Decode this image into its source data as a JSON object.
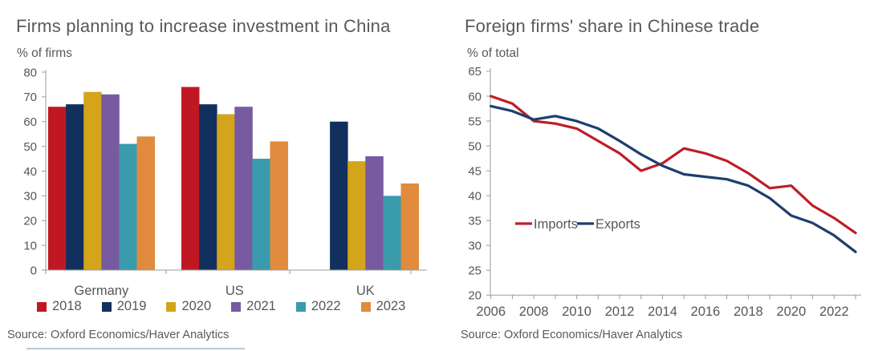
{
  "chart_data": [
    {
      "type": "bar",
      "title": "Firms planning to increase investment in China",
      "unit_label": "% of firms",
      "categories": [
        "Germany",
        "US",
        "UK"
      ],
      "series": [
        {
          "name": "2018",
          "color": "#c01823",
          "values": [
            66,
            74,
            null
          ]
        },
        {
          "name": "2019",
          "color": "#12305e",
          "values": [
            67,
            67,
            60
          ]
        },
        {
          "name": "2020",
          "color": "#d4a41a",
          "values": [
            72,
            63,
            44
          ]
        },
        {
          "name": "2021",
          "color": "#785aa0",
          "values": [
            71,
            66,
            46
          ]
        },
        {
          "name": "2022",
          "color": "#3a9bac",
          "values": [
            51,
            45,
            30
          ]
        },
        {
          "name": "2023",
          "color": "#e08b3d",
          "values": [
            54,
            52,
            35
          ]
        }
      ],
      "ylim": [
        0,
        80
      ],
      "ytick_step": 10,
      "grid": false,
      "legend_position": "bottom",
      "source": "Source: Oxford Economics/Haver Analytics"
    },
    {
      "type": "line",
      "title": "Foreign firms' share in Chinese trade",
      "unit_label": "% of total",
      "x": [
        2006,
        2007,
        2008,
        2009,
        2010,
        2011,
        2012,
        2013,
        2014,
        2015,
        2016,
        2017,
        2018,
        2019,
        2020,
        2021,
        2022,
        2023
      ],
      "series": [
        {
          "name": "Imports",
          "color": "#be1e26",
          "values": [
            60,
            58.5,
            55,
            54.5,
            53.5,
            51,
            48.5,
            45,
            46.5,
            49.5,
            48.5,
            47,
            44.5,
            41.5,
            42,
            38,
            35.5,
            32.5
          ]
        },
        {
          "name": "Exports",
          "color": "#1b3f6e",
          "values": [
            58,
            57,
            55.3,
            56,
            55,
            53.5,
            51,
            48.3,
            46,
            44.3,
            43.8,
            43.3,
            42,
            39.5,
            36,
            34.5,
            32,
            28.7
          ]
        }
      ],
      "ylim": [
        20,
        65
      ],
      "ytick_step": 5,
      "xtick_labels": [
        "2006",
        "2008",
        "2010",
        "2012",
        "2014",
        "2016",
        "2018",
        "2020",
        "2022"
      ],
      "grid": false,
      "legend_position": "inside-left",
      "source": "Source: Oxford Economics/Haver Analytics"
    }
  ],
  "style": {
    "axis_color": "#9b9b9b",
    "tick_label_color": "#575757",
    "text_color": "#595959"
  }
}
